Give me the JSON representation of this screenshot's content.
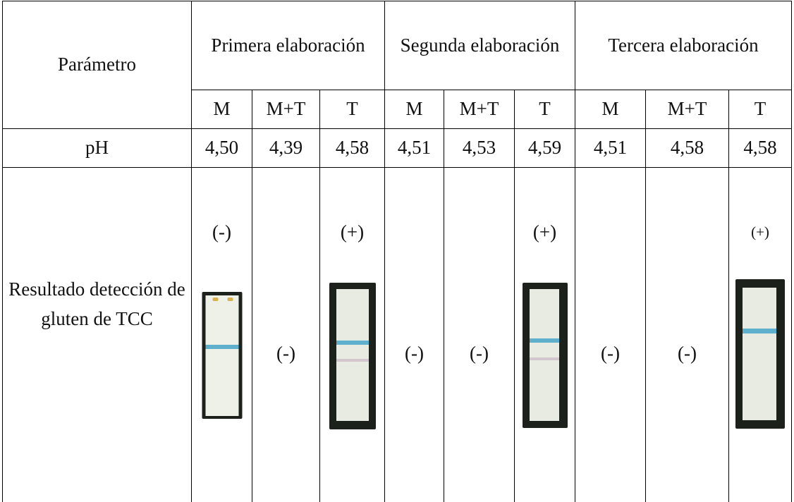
{
  "table": {
    "param_header": "Parámetro",
    "groups": [
      "Primera elaboración",
      "Segunda elaboración",
      "Tercera elaboración"
    ],
    "subheaders": [
      "M",
      "M+T",
      "T",
      "M",
      "M+T",
      "T",
      "M",
      "M+T",
      "T"
    ],
    "ph_label": "pH",
    "ph_values": [
      "4,50",
      "4,39",
      "4,58",
      "4,51",
      "4,53",
      "4,59",
      "4,51",
      "4,58",
      "4,58"
    ],
    "result_label": "Resultado detección de gluten de TCC",
    "results": [
      "(-)",
      "(-)",
      "(+)",
      "(-)",
      "(-)",
      "(+)",
      "(-)",
      "(-)",
      "(+)"
    ],
    "strip_images": [
      "M",
      "T",
      "T",
      "T"
    ]
  },
  "colors": {
    "test_line": "#5fb0cc",
    "strip_frame": "#1d211c",
    "strip_paper": "#e7ebe2"
  }
}
